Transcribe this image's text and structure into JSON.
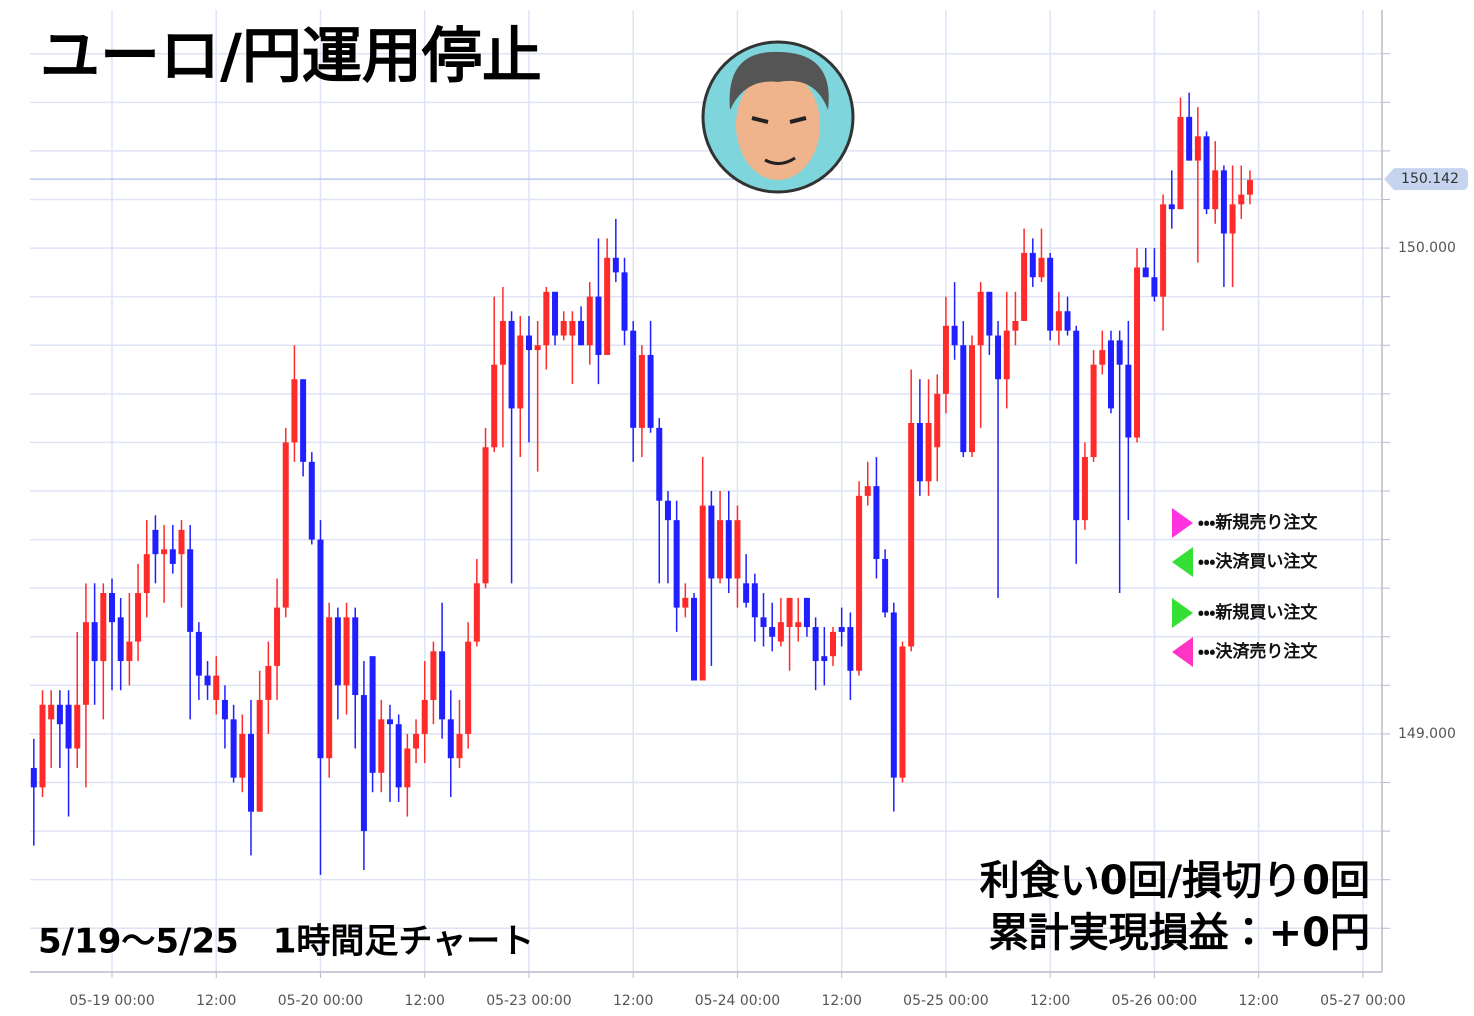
{
  "chart_data": {
    "type": "candlestick",
    "title": "ユーロ/円運用停止",
    "subtitle": "5/19～5/25　1時間足チャート",
    "stats": [
      "利食い0回/損切り0回",
      "累計実現損益：+0円"
    ],
    "up_color": "#ff2a2a",
    "down_color": "#1f1fff",
    "grid": true,
    "grid_color": "#dfe3f6",
    "xlim": [
      -9.44,
      146.2
    ],
    "ylim": [
      148.51,
      150.49
    ],
    "xticks": [
      {
        "value": 0,
        "label": "05-19 00:00"
      },
      {
        "value": 12,
        "label": "12:00"
      },
      {
        "value": 24,
        "label": "05-20 00:00"
      },
      {
        "value": 36,
        "label": "12:00"
      },
      {
        "value": 48,
        "label": "05-23 00:00"
      },
      {
        "value": 60,
        "label": "12:00"
      },
      {
        "value": 72,
        "label": "05-24 00:00"
      },
      {
        "value": 84,
        "label": "12:00"
      },
      {
        "value": 96,
        "label": "05-25 00:00"
      },
      {
        "value": 108,
        "label": "12:00"
      },
      {
        "value": 120,
        "label": "05-26 00:00"
      },
      {
        "value": 132,
        "label": "12:00"
      },
      {
        "value": 144,
        "label": "05-27 00:00"
      }
    ],
    "yticks": [
      {
        "value": 149,
        "label": "149.000"
      },
      {
        "value": 150,
        "label": "150.000"
      }
    ],
    "minor_yticks": [
      148.6,
      148.7,
      148.8,
      148.9,
      149.1,
      149.2,
      149.3,
      149.4,
      149.5,
      149.6,
      149.7,
      149.8,
      149.9,
      150.1,
      150.2,
      150.3,
      150.4
    ],
    "last_price": {
      "value": 150.142,
      "label": "150.142"
    },
    "order_legend": [
      {
        "label": "・・・新規売り注文",
        "color": "#ff33e0",
        "marker": "right"
      },
      {
        "label": "・・・決済買い注文",
        "color": "#33e033",
        "marker": "left"
      },
      {
        "label": "・・・新規買い注文",
        "color": "#33e033",
        "marker": "right"
      },
      {
        "label": "・・・決済売り注文",
        "color": "#ff33c4",
        "marker": "left"
      }
    ],
    "x": [
      -9,
      -8,
      -7,
      -6,
      -5,
      -4,
      -3,
      -2,
      -1,
      0,
      1,
      2,
      3,
      4,
      5,
      6,
      7,
      8,
      9,
      10,
      11,
      12,
      13,
      14,
      15,
      16,
      17,
      18,
      19,
      20,
      21,
      22,
      23,
      24,
      25,
      26,
      27,
      28,
      29,
      30,
      31,
      32,
      33,
      34,
      35,
      36,
      37,
      38,
      39,
      40,
      41,
      42,
      43,
      44,
      45,
      46,
      47,
      48,
      49,
      50,
      51,
      52,
      53,
      54,
      55,
      56,
      57,
      58,
      59,
      60,
      61,
      62,
      63,
      64,
      65,
      66,
      67,
      68,
      69,
      70,
      71,
      72,
      73,
      74,
      75,
      76,
      77,
      78,
      79,
      80,
      81,
      82,
      83,
      84,
      85,
      86,
      87,
      88,
      89,
      90,
      91,
      92,
      93,
      94,
      95,
      96,
      97,
      98,
      99,
      100,
      101,
      102,
      103,
      104,
      105,
      106,
      107,
      108,
      109,
      110,
      111,
      112,
      113,
      114,
      115,
      116,
      117,
      118,
      119,
      120,
      121,
      122,
      123,
      124,
      125,
      126,
      127,
      128,
      129,
      130,
      131
    ],
    "open": [
      148.93,
      148.89,
      149.03,
      149.06,
      149.06,
      148.97,
      149.06,
      149.23,
      149.15,
      149.29,
      149.24,
      149.15,
      149.19,
      149.29,
      149.42,
      149.37,
      149.38,
      149.37,
      149.38,
      149.21,
      149.12,
      149.07,
      149.07,
      149.03,
      148.91,
      149.0,
      148.84,
      149.07,
      149.14,
      149.26,
      149.6,
      149.73,
      149.56,
      149.4,
      148.95,
      149.24,
      149.1,
      149.24,
      149.08,
      149.16,
      148.92,
      149.03,
      149.02,
      148.89,
      148.97,
      149.0,
      149.07,
      149.17,
      149.03,
      148.95,
      149.0,
      149.19,
      149.31,
      149.59,
      149.76,
      149.85,
      149.67,
      149.82,
      149.79,
      149.8,
      149.91,
      149.82,
      149.82,
      149.85,
      149.8,
      149.9,
      149.78,
      149.98,
      149.95,
      149.83,
      149.63,
      149.78,
      149.63,
      149.48,
      149.44,
      149.26,
      149.28,
      149.11,
      149.47,
      149.32,
      149.44,
      149.32,
      149.31,
      149.31,
      149.24,
      149.22,
      149.19,
      149.22,
      149.22,
      149.28,
      149.22,
      149.16,
      149.16,
      149.22,
      149.22,
      149.13,
      149.49,
      149.51,
      149.36,
      149.25,
      148.91,
      149.18,
      149.64,
      149.52,
      149.59,
      149.7,
      149.84,
      149.8,
      149.58,
      149.8,
      149.91,
      149.82,
      149.73,
      149.83,
      149.85,
      149.99,
      149.94,
      149.98,
      149.83,
      149.87,
      149.83,
      149.44,
      149.57,
      149.76,
      149.81,
      149.81,
      149.76,
      149.61,
      149.96,
      149.94,
      149.9,
      150.09,
      150.08,
      150.27,
      150.18,
      150.23,
      150.08,
      150.16,
      150.03,
      150.09,
      150.11
    ],
    "high": [
      148.99,
      149.09,
      149.09,
      149.09,
      149.09,
      149.21,
      149.31,
      149.31,
      149.31,
      149.32,
      149.28,
      149.29,
      149.35,
      149.44,
      149.45,
      149.43,
      149.43,
      149.44,
      149.43,
      149.23,
      149.15,
      149.16,
      149.1,
      149.06,
      149.04,
      149.07,
      149.13,
      149.19,
      149.32,
      149.63,
      149.8,
      149.73,
      149.58,
      149.44,
      149.27,
      149.26,
      149.27,
      149.26,
      149.15,
      149.16,
      149.07,
      149.06,
      149.04,
      149.0,
      149.03,
      149.15,
      149.19,
      149.27,
      149.09,
      149.07,
      149.23,
      149.36,
      149.63,
      149.9,
      149.92,
      149.87,
      149.86,
      149.86,
      149.85,
      149.92,
      149.91,
      149.87,
      149.87,
      149.88,
      149.93,
      150.02,
      150.02,
      150.06,
      149.98,
      149.85,
      149.8,
      149.85,
      149.65,
      149.5,
      149.48,
      149.31,
      149.29,
      149.57,
      149.5,
      149.5,
      149.5,
      149.47,
      149.37,
      149.33,
      149.29,
      149.27,
      149.28,
      149.28,
      149.28,
      149.28,
      149.24,
      149.22,
      149.22,
      149.26,
      149.25,
      149.52,
      149.56,
      149.57,
      149.38,
      149.27,
      149.19,
      149.75,
      149.73,
      149.73,
      149.74,
      149.9,
      149.93,
      149.85,
      149.82,
      149.93,
      149.91,
      149.85,
      149.91,
      149.91,
      150.04,
      150.02,
      150.04,
      149.99,
      149.91,
      149.9,
      149.84,
      149.6,
      149.79,
      149.83,
      149.83,
      149.83,
      149.85,
      150.0,
      150.0,
      150.0,
      150.11,
      150.16,
      150.31,
      150.32,
      150.29,
      150.24,
      150.22,
      150.17,
      150.17,
      150.17,
      150.16
    ],
    "low": [
      148.77,
      148.87,
      148.93,
      148.93,
      148.83,
      148.93,
      148.89,
      149.06,
      149.03,
      149.09,
      149.09,
      149.1,
      149.15,
      149.24,
      149.31,
      149.27,
      149.33,
      149.26,
      149.03,
      149.07,
      149.07,
      149.04,
      148.97,
      148.9,
      148.88,
      148.75,
      148.84,
      149.0,
      149.07,
      149.24,
      149.56,
      149.53,
      149.39,
      148.71,
      148.91,
      149.03,
      149.04,
      148.97,
      148.72,
      148.88,
      148.88,
      148.86,
      148.86,
      148.83,
      148.94,
      148.94,
      149.02,
      148.99,
      148.87,
      148.93,
      148.97,
      149.18,
      149.3,
      149.58,
      149.59,
      149.31,
      149.57,
      149.6,
      149.54,
      149.75,
      149.8,
      149.81,
      149.72,
      149.8,
      149.76,
      149.72,
      149.78,
      149.93,
      149.8,
      149.56,
      149.57,
      149.62,
      149.31,
      149.31,
      149.21,
      149.24,
      149.11,
      149.11,
      149.14,
      149.31,
      149.29,
      149.26,
      149.26,
      149.19,
      149.18,
      149.17,
      149.18,
      149.13,
      149.19,
      149.2,
      149.09,
      149.1,
      149.14,
      149.18,
      149.07,
      149.12,
      149.47,
      149.32,
      149.24,
      148.84,
      148.9,
      149.17,
      149.49,
      149.49,
      149.52,
      149.66,
      149.77,
      149.57,
      149.57,
      149.63,
      149.78,
      149.28,
      149.67,
      149.8,
      149.85,
      149.92,
      149.93,
      149.81,
      149.8,
      149.82,
      149.35,
      149.42,
      149.56,
      149.74,
      149.66,
      149.29,
      149.44,
      149.6,
      149.94,
      149.89,
      149.83,
      150.04,
      150.08,
      150.18,
      149.97,
      150.07,
      150.05,
      149.92,
      149.92,
      150.06,
      150.09
    ],
    "close": [
      148.89,
      149.06,
      149.06,
      149.02,
      148.97,
      149.06,
      149.23,
      149.15,
      149.29,
      149.23,
      149.15,
      149.19,
      149.29,
      149.37,
      149.37,
      149.38,
      149.35,
      149.42,
      149.21,
      149.12,
      149.1,
      149.12,
      149.03,
      148.91,
      149.0,
      148.84,
      149.07,
      149.14,
      149.26,
      149.6,
      149.73,
      149.56,
      149.4,
      148.95,
      149.24,
      149.1,
      149.24,
      149.08,
      148.8,
      148.92,
      149.03,
      149.02,
      148.89,
      148.97,
      149.0,
      149.07,
      149.17,
      149.03,
      148.95,
      149.0,
      149.19,
      149.31,
      149.59,
      149.76,
      149.85,
      149.67,
      149.82,
      149.79,
      149.8,
      149.91,
      149.82,
      149.85,
      149.85,
      149.8,
      149.9,
      149.78,
      149.98,
      149.95,
      149.83,
      149.63,
      149.78,
      149.63,
      149.48,
      149.44,
      149.26,
      149.28,
      149.11,
      149.47,
      149.32,
      149.44,
      149.32,
      149.44,
      149.27,
      149.24,
      149.22,
      149.2,
      149.23,
      149.28,
      149.23,
      149.22,
      149.15,
      149.15,
      149.21,
      149.21,
      149.13,
      149.49,
      149.51,
      149.36,
      149.25,
      148.91,
      149.18,
      149.64,
      149.52,
      149.64,
      149.7,
      149.84,
      149.8,
      149.58,
      149.8,
      149.91,
      149.82,
      149.73,
      149.83,
      149.85,
      149.99,
      149.94,
      149.98,
      149.83,
      149.87,
      149.83,
      149.44,
      149.57,
      149.76,
      149.79,
      149.67,
      149.76,
      149.61,
      149.96,
      149.94,
      149.9,
      150.09,
      150.08,
      150.27,
      150.18,
      150.23,
      150.08,
      150.16,
      150.03,
      150.09,
      150.11,
      150.14
    ]
  }
}
